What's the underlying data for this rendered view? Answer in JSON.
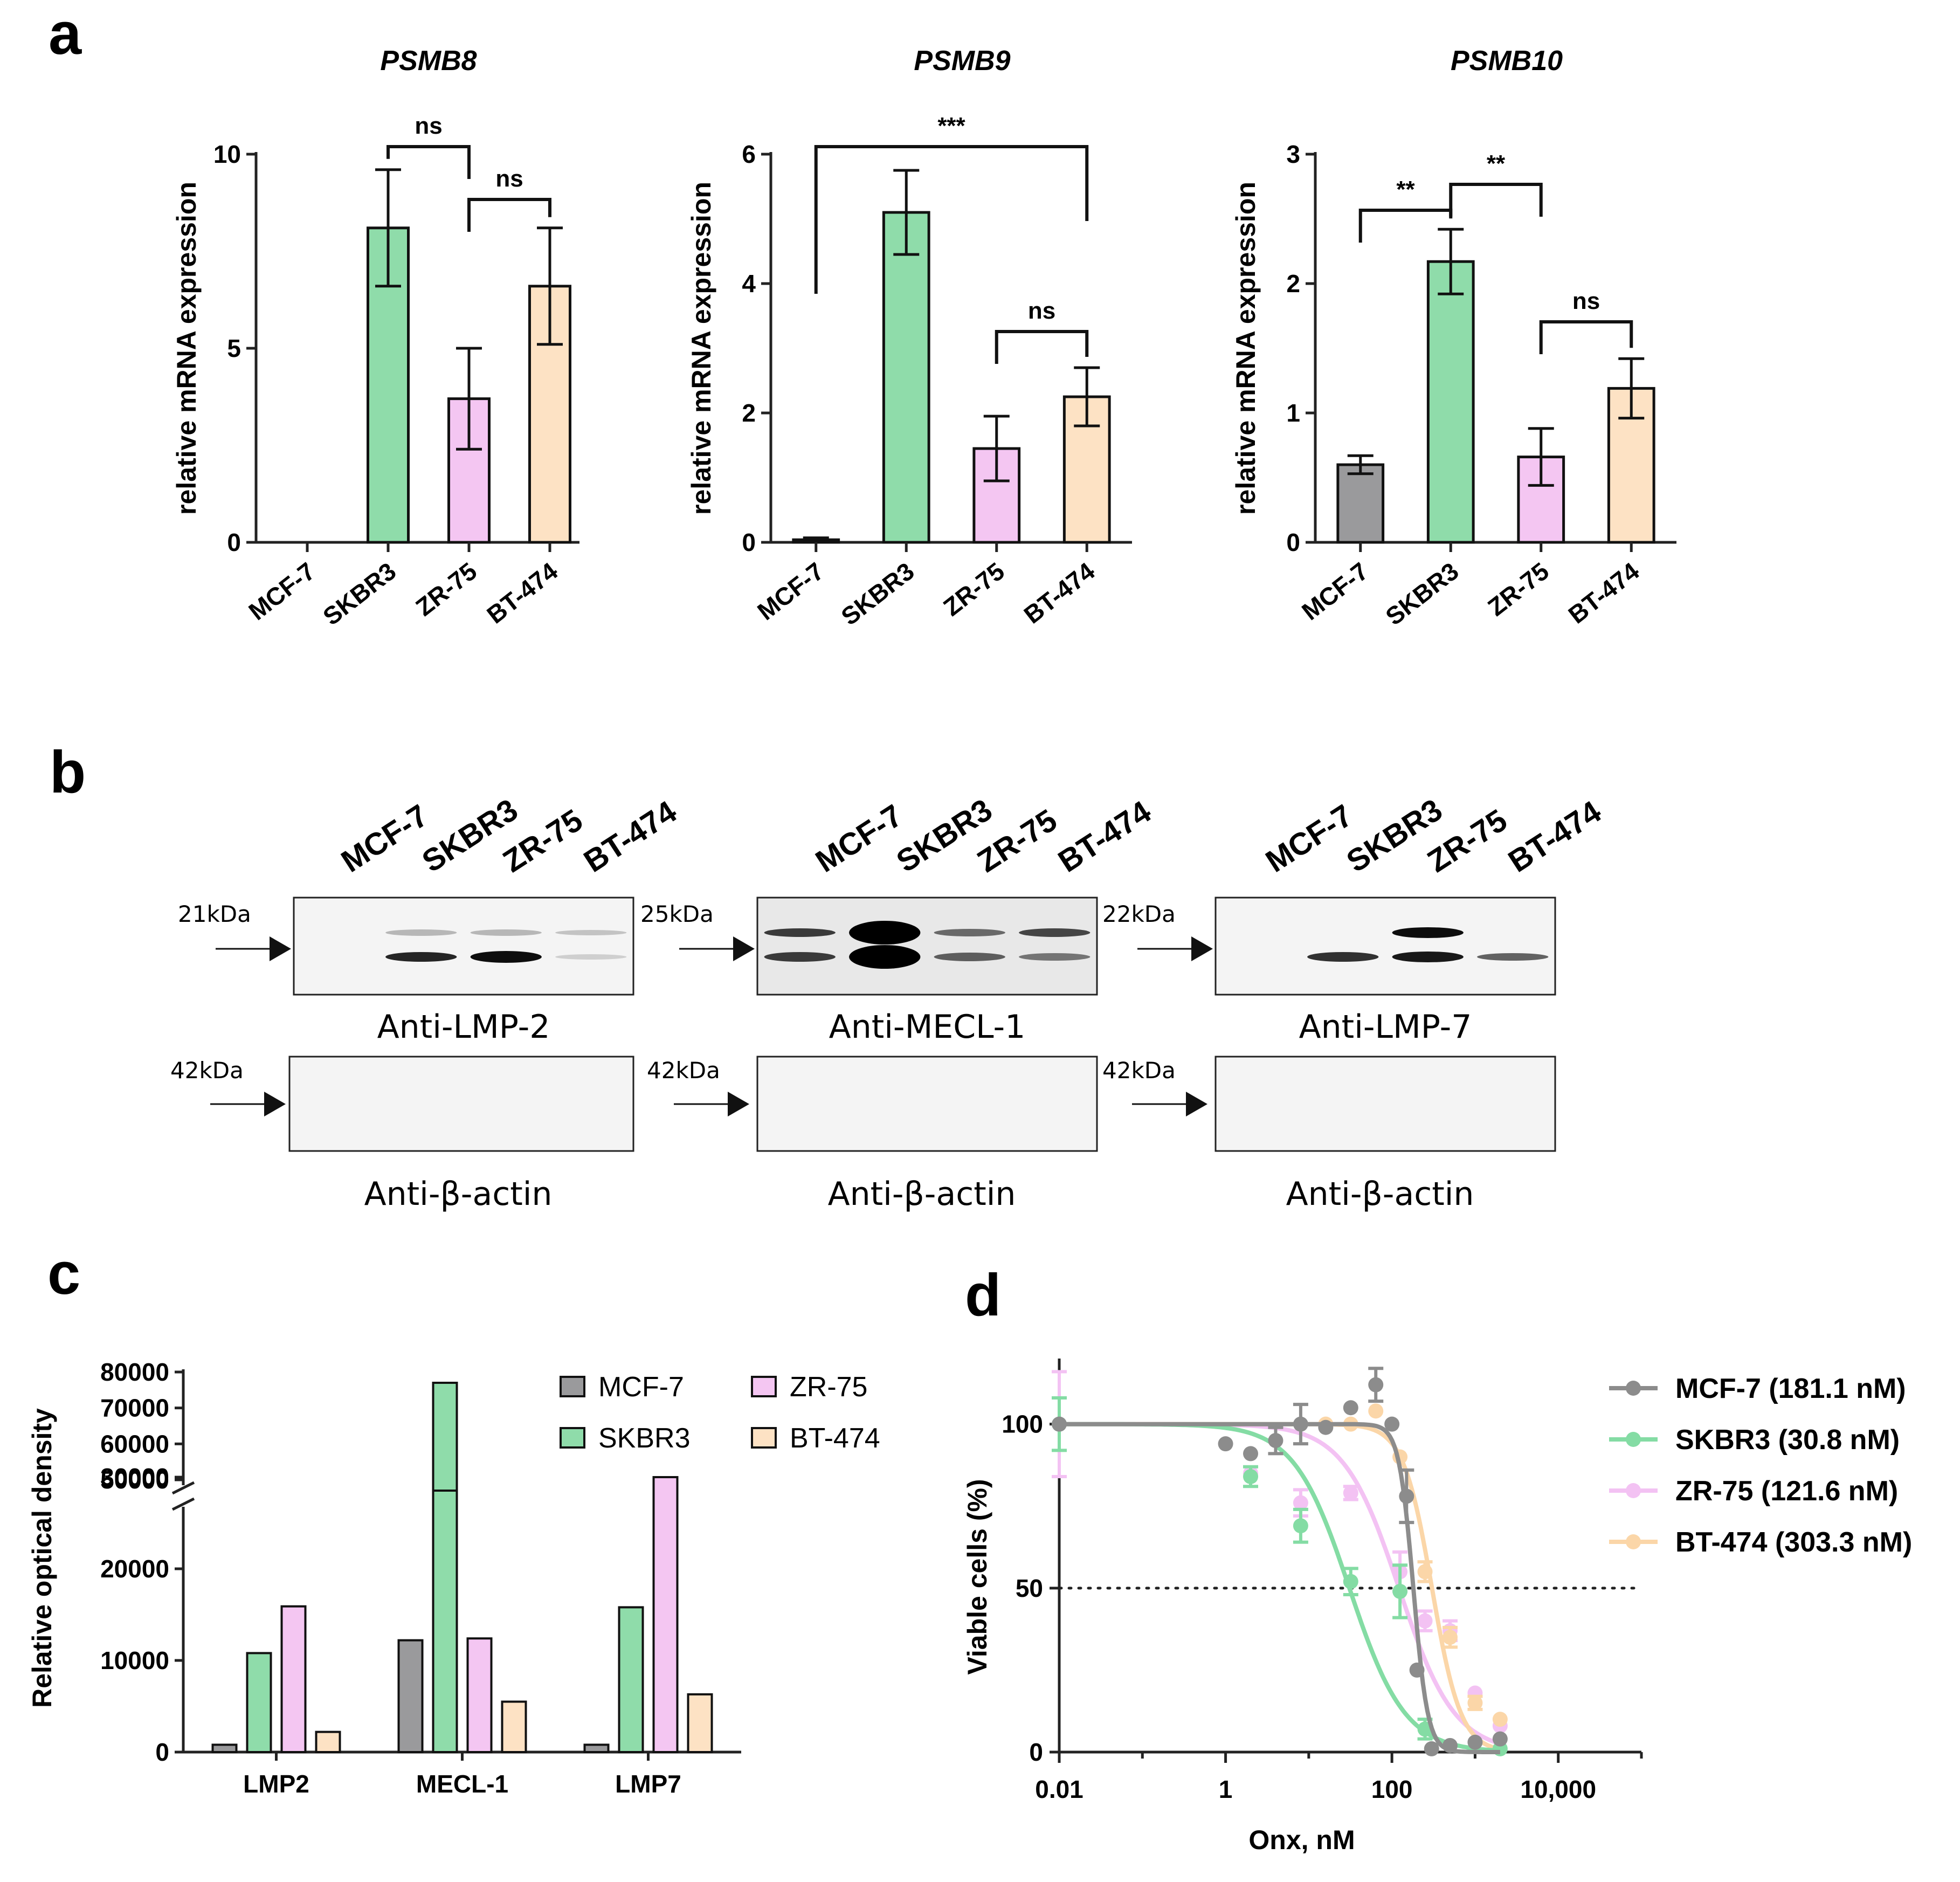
{
  "colors": {
    "MCF-7": "#9a9a9c",
    "SKBR3": "#8fdcaa",
    "ZR-75": "#f4c6f2",
    "BT-474": "#fde2c4",
    "MCF-7-line": "#8c8c8c",
    "SKBR3-line": "#84dca4",
    "ZR-75-line": "#f3c2f3",
    "BT-474-line": "#fbd6a8"
  },
  "panel_a": {
    "letter": "a",
    "ylabel": "relative mRNA expression",
    "charts": [
      {
        "title": "PSMB8",
        "type": "bar",
        "categories": [
          "MCF-7",
          "SKBR3",
          "ZR-75",
          "BT-474"
        ],
        "values": [
          0,
          8.1,
          3.7,
          6.6
        ],
        "errors": [
          0,
          1.5,
          1.3,
          1.5
        ],
        "ylim": [
          0,
          10
        ],
        "yticks": [
          "0",
          "5",
          "10"
        ],
        "ytick_values": [
          0,
          5,
          10
        ],
        "brackets": [
          {
            "from": 1,
            "to": 2,
            "label": "ns"
          },
          {
            "from": 2,
            "to": 3,
            "label": "ns"
          }
        ]
      },
      {
        "title": "PSMB9",
        "type": "bar",
        "categories": [
          "MCF-7",
          "SKBR3",
          "ZR-75",
          "BT-474"
        ],
        "values": [
          0.04,
          5.1,
          1.45,
          2.25
        ],
        "errors": [
          0.03,
          0.65,
          0.5,
          0.45
        ],
        "ylim": [
          0,
          6
        ],
        "yticks": [
          "0",
          "2",
          "4",
          "6"
        ],
        "ytick_values": [
          0,
          2,
          4,
          6
        ],
        "brackets": [
          {
            "from": 0,
            "to": 3,
            "label": "***"
          },
          {
            "from": 2,
            "to": 3,
            "label": "ns"
          }
        ]
      },
      {
        "title": "PSMB10",
        "type": "bar",
        "categories": [
          "MCF-7",
          "SKBR3",
          "ZR-75",
          "BT-474"
        ],
        "values": [
          0.6,
          2.17,
          0.66,
          1.19
        ],
        "errors": [
          0.07,
          0.25,
          0.22,
          0.23
        ],
        "ylim": [
          0,
          3
        ],
        "yticks": [
          "0",
          "1",
          "2",
          "3"
        ],
        "ytick_values": [
          0,
          1,
          2,
          3
        ],
        "brackets": [
          {
            "from": 0,
            "to": 1,
            "label": "**"
          },
          {
            "from": 1,
            "to": 2,
            "label": "**"
          },
          {
            "from": 2,
            "to": 3,
            "label": "ns"
          }
        ]
      }
    ]
  },
  "panel_b": {
    "letter": "b",
    "lanes": [
      "MCF-7",
      "SKBR3",
      "ZR-75",
      "BT-474"
    ],
    "blots": [
      {
        "label": "Anti-LMP-2",
        "kda": "21kDa",
        "actin_label": "Anti-β-actin",
        "actin_kda": "42kDa"
      },
      {
        "label": "Anti-MECL-1",
        "kda": "25kDa",
        "actin_label": "Anti-β-actin",
        "actin_kda": "42kDa"
      },
      {
        "label": "Anti-LMP-7",
        "kda": "22kDa",
        "actin_label": "Anti-β-actin",
        "actin_kda": "42kDa"
      }
    ]
  },
  "panel_c": {
    "letter": "c",
    "ylabel": "Relative optical density",
    "chart_data": {
      "type": "bar",
      "categories": [
        "LMP2",
        "MECL-1",
        "LMP7"
      ],
      "series": [
        {
          "name": "MCF-7",
          "values": [
            800,
            12200,
            800
          ]
        },
        {
          "name": "SKBR3",
          "values": [
            10800,
            77000,
            15800
          ]
        },
        {
          "name": "ZR-75",
          "values": [
            15900,
            12400,
            30000
          ]
        },
        {
          "name": "BT-474",
          "values": [
            2200,
            5500,
            6300
          ]
        }
      ],
      "broken_axis": true,
      "lower_ylim": [
        0,
        35000
      ],
      "upper_ylim": [
        50000,
        80000
      ],
      "lower_ticks": [
        "0",
        "10000",
        "20000",
        "30000"
      ],
      "lower_tick_values": [
        0,
        10000,
        20000,
        30000
      ],
      "upper_ticks": [
        "50000",
        "60000",
        "70000",
        "80000"
      ],
      "upper_tick_values": [
        50000,
        60000,
        70000,
        80000
      ],
      "legend_placement": "top-right"
    }
  },
  "panel_d": {
    "letter": "d",
    "chart_data": {
      "type": "line",
      "xlabel": "Onx, nM",
      "ylabel": "Viable cells (%)",
      "x_scale": "log",
      "xlim": [
        0.01,
        100000
      ],
      "ylim": [
        0,
        120
      ],
      "xticks": [
        "0.01",
        "1",
        "100",
        "10,000"
      ],
      "xtick_values": [
        0.01,
        1,
        100,
        10000
      ],
      "yticks": [
        "0",
        "50",
        "100"
      ],
      "ytick_values": [
        0,
        50,
        100
      ],
      "reference_line_y": 50,
      "legend_placement": "right",
      "series": [
        {
          "name": "MCF-7 (181.1 nM)",
          "ic50": 181.1,
          "hill": 5,
          "x": [
            0.01,
            1,
            2,
            4,
            8,
            16,
            32,
            64,
            100,
            150,
            200,
            300,
            500,
            1000,
            2000
          ],
          "y": [
            100,
            94,
            91,
            95,
            100,
            99,
            105,
            112,
            100,
            78,
            25,
            1,
            2,
            3,
            4
          ],
          "err": [
            0,
            0,
            0,
            4,
            6,
            0,
            0,
            5,
            0,
            8,
            0,
            0,
            0,
            0,
            0
          ]
        },
        {
          "name": "SKBR3 (30.8 nM)",
          "ic50": 30.8,
          "hill": 1.3,
          "x": [
            0.01,
            2,
            8,
            32,
            125,
            250,
            2000
          ],
          "y": [
            100,
            84,
            69,
            52,
            49,
            7,
            1
          ],
          "err": [
            8,
            3,
            5,
            4,
            8,
            3,
            0
          ]
        },
        {
          "name": "ZR-75 (121.6 nM)",
          "ic50": 121.6,
          "hill": 1.3,
          "x": [
            0.01,
            2,
            8,
            32,
            125,
            250,
            500,
            1000,
            2000
          ],
          "y": [
            100,
            85,
            76,
            79,
            55,
            40,
            37,
            18,
            8
          ],
          "err": [
            16,
            0,
            4,
            2,
            6,
            3,
            3,
            0,
            0
          ]
        },
        {
          "name": "BT-474 (303.3 nM)",
          "ic50": 303.3,
          "hill": 2.5,
          "x": [
            16,
            32,
            64,
            125,
            250,
            500,
            1000,
            2000
          ],
          "y": [
            100,
            100,
            104,
            90,
            55,
            35,
            15,
            10
          ],
          "err": [
            0,
            0,
            0,
            0,
            3,
            3,
            2,
            0
          ]
        }
      ]
    }
  }
}
